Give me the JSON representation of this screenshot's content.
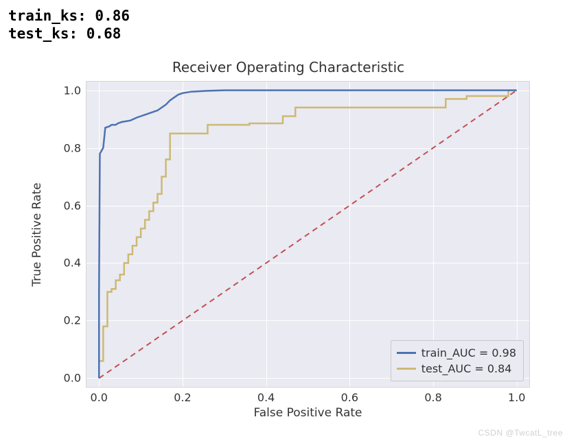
{
  "header": {
    "line1": "train_ks: 0.86",
    "line2": "test_ks: 0.68"
  },
  "chart": {
    "type": "line",
    "title": "Receiver Operating Characteristic",
    "title_fontsize": 20,
    "xlabel": "False Positive Rate",
    "ylabel": "True Positive Rate",
    "label_fontsize": 17,
    "tick_fontsize": 16,
    "xlim": [
      -0.03,
      1.03
    ],
    "ylim": [
      -0.03,
      1.03
    ],
    "xticks": [
      0.0,
      0.2,
      0.4,
      0.6,
      0.8,
      1.0
    ],
    "yticks": [
      0.0,
      0.2,
      0.4,
      0.6,
      0.8,
      1.0
    ],
    "background_color": "#eaeaf2",
    "grid_color": "#ffffff",
    "series": {
      "train": {
        "label": "train_AUC = 0.98",
        "color": "#4c72b0",
        "line_width": 2.5,
        "dash": "none",
        "points": [
          [
            0.0,
            0.0
          ],
          [
            0.0,
            0.3
          ],
          [
            0.002,
            0.78
          ],
          [
            0.01,
            0.8
          ],
          [
            0.015,
            0.87
          ],
          [
            0.025,
            0.875
          ],
          [
            0.03,
            0.88
          ],
          [
            0.04,
            0.88
          ],
          [
            0.045,
            0.885
          ],
          [
            0.055,
            0.89
          ],
          [
            0.075,
            0.895
          ],
          [
            0.09,
            0.905
          ],
          [
            0.1,
            0.91
          ],
          [
            0.11,
            0.915
          ],
          [
            0.12,
            0.92
          ],
          [
            0.13,
            0.925
          ],
          [
            0.14,
            0.93
          ],
          [
            0.15,
            0.94
          ],
          [
            0.16,
            0.95
          ],
          [
            0.17,
            0.965
          ],
          [
            0.18,
            0.975
          ],
          [
            0.19,
            0.985
          ],
          [
            0.2,
            0.99
          ],
          [
            0.22,
            0.995
          ],
          [
            0.26,
            0.998
          ],
          [
            0.3,
            1.0
          ],
          [
            1.0,
            1.0
          ]
        ]
      },
      "test": {
        "label": "test_AUC = 0.84",
        "color": "#ccb974",
        "line_width": 2.5,
        "dash": "none",
        "points": [
          [
            0.0,
            0.0
          ],
          [
            0.0,
            0.06
          ],
          [
            0.01,
            0.06
          ],
          [
            0.01,
            0.18
          ],
          [
            0.02,
            0.18
          ],
          [
            0.02,
            0.3
          ],
          [
            0.03,
            0.3
          ],
          [
            0.03,
            0.31
          ],
          [
            0.04,
            0.31
          ],
          [
            0.04,
            0.34
          ],
          [
            0.05,
            0.34
          ],
          [
            0.05,
            0.36
          ],
          [
            0.06,
            0.36
          ],
          [
            0.06,
            0.4
          ],
          [
            0.07,
            0.4
          ],
          [
            0.07,
            0.43
          ],
          [
            0.08,
            0.43
          ],
          [
            0.08,
            0.46
          ],
          [
            0.09,
            0.46
          ],
          [
            0.09,
            0.49
          ],
          [
            0.1,
            0.49
          ],
          [
            0.1,
            0.52
          ],
          [
            0.11,
            0.52
          ],
          [
            0.11,
            0.55
          ],
          [
            0.12,
            0.55
          ],
          [
            0.12,
            0.58
          ],
          [
            0.13,
            0.58
          ],
          [
            0.13,
            0.61
          ],
          [
            0.14,
            0.61
          ],
          [
            0.14,
            0.64
          ],
          [
            0.15,
            0.64
          ],
          [
            0.15,
            0.7
          ],
          [
            0.16,
            0.7
          ],
          [
            0.16,
            0.76
          ],
          [
            0.17,
            0.76
          ],
          [
            0.17,
            0.85
          ],
          [
            0.26,
            0.85
          ],
          [
            0.26,
            0.88
          ],
          [
            0.36,
            0.88
          ],
          [
            0.36,
            0.885
          ],
          [
            0.44,
            0.885
          ],
          [
            0.44,
            0.91
          ],
          [
            0.47,
            0.91
          ],
          [
            0.47,
            0.94
          ],
          [
            0.56,
            0.94
          ],
          [
            0.83,
            0.94
          ],
          [
            0.83,
            0.97
          ],
          [
            0.88,
            0.97
          ],
          [
            0.88,
            0.98
          ],
          [
            0.98,
            0.98
          ],
          [
            0.98,
            1.0
          ],
          [
            1.0,
            1.0
          ]
        ]
      },
      "diagonal": {
        "label": "",
        "color": "#c44e52",
        "line_width": 2,
        "dash": "8,6",
        "points": [
          [
            0.0,
            0.0
          ],
          [
            1.0,
            1.0
          ]
        ]
      }
    },
    "legend": {
      "position": "lower-right",
      "border_color": "#c8c8c8",
      "fontsize": 16,
      "entries": [
        "train",
        "test"
      ]
    }
  },
  "watermark": "CSDN @TwcatL_tree"
}
